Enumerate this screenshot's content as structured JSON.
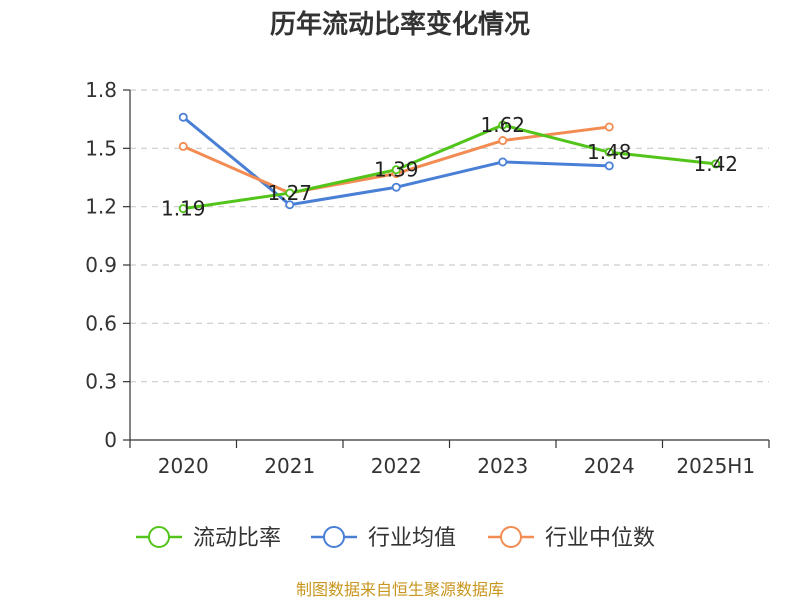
{
  "chart_data": {
    "type": "line",
    "title": "历年流动比率变化情况",
    "categories": [
      "2020",
      "2021",
      "2022",
      "2023",
      "2024",
      "2025H1"
    ],
    "yticks": [
      "0",
      "0.3",
      "0.6",
      "0.9",
      "1.2",
      "1.5",
      "1.8"
    ],
    "ylim": [
      0,
      1.8
    ],
    "grid": true,
    "legend_position": "bottom",
    "series": [
      {
        "name": "流动比率",
        "color": "#52c41a",
        "values": [
          1.19,
          1.27,
          1.39,
          1.62,
          1.48,
          1.42
        ],
        "labels": [
          "1.19",
          "1.27",
          "1.39",
          "1.62",
          "1.48",
          "1.42"
        ]
      },
      {
        "name": "行业均值",
        "color": "#4a7fd6",
        "values": [
          1.66,
          1.21,
          1.3,
          1.43,
          1.41,
          null
        ]
      },
      {
        "name": "行业中位数",
        "color": "#f28c52",
        "values": [
          1.51,
          1.27,
          1.37,
          1.54,
          1.61,
          null
        ]
      }
    ],
    "source": "制图数据来自恒生聚源数据库"
  }
}
